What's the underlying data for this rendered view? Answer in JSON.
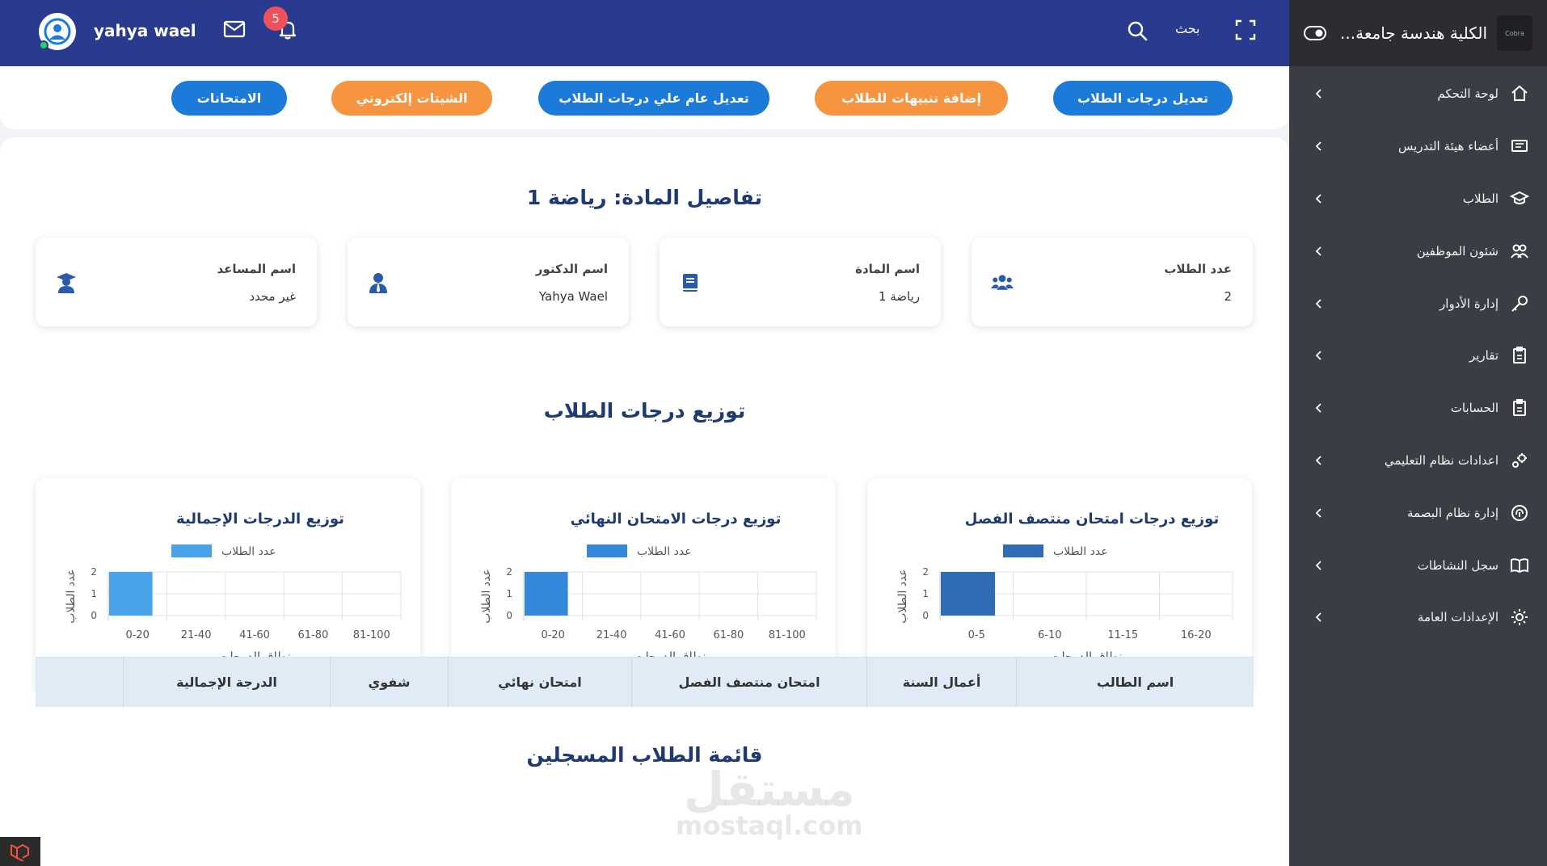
{
  "sidebar": {
    "title": "الكلية هندسة جامعة...",
    "logo_text": "Cobra",
    "items": [
      {
        "label": "لوحة التحكم",
        "icon": "home-icon"
      },
      {
        "label": "أعضاء هيئة التدريس",
        "icon": "board-icon"
      },
      {
        "label": "الطلاب",
        "icon": "graduation-cap-icon"
      },
      {
        "label": "شئون الموظفين",
        "icon": "people-icon"
      },
      {
        "label": "إدارة الأدوار",
        "icon": "key-icon"
      },
      {
        "label": "تقارير",
        "icon": "clipboard-icon"
      },
      {
        "label": "الحسابات",
        "icon": "clipboard-icon"
      },
      {
        "label": "اعدادات نظام التعليمي",
        "icon": "gears-icon"
      },
      {
        "label": "إدارة نظام البصمة",
        "icon": "fingerprint-icon"
      },
      {
        "label": "سجل النشاطات",
        "icon": "book-icon"
      },
      {
        "label": "الإعدادات العامة",
        "icon": "gear-icon"
      }
    ]
  },
  "topbar": {
    "username": "yahya wael",
    "notification_count": "5",
    "search_label": "بحث"
  },
  "actions": [
    {
      "label": "تعديل درجات الطلاب",
      "style": "blue"
    },
    {
      "label": "إضافة تنبيهات للطلاب",
      "style": "orange"
    },
    {
      "label": "تعديل عام علي درجات الطلاب",
      "style": "blue"
    },
    {
      "label": "الشيتات إلكتروني",
      "style": "orange"
    },
    {
      "label": "الامتحانات",
      "style": "blue"
    }
  ],
  "course": {
    "details_title": "تفاصيل المادة: رياضة 1",
    "cards": [
      {
        "label": "عدد الطلاب",
        "value": "2",
        "icon": "users-icon"
      },
      {
        "label": "اسم المادة",
        "value": "رياضة 1",
        "icon": "book-icon"
      },
      {
        "label": "اسم الدكتور",
        "value": "Yahya Wael",
        "icon": "user-tie-icon"
      },
      {
        "label": "اسم المساعد",
        "value": "غير محدد",
        "icon": "graduate-icon"
      }
    ]
  },
  "distribution_title": "توزيع درجات الطلاب",
  "chart_data": [
    {
      "type": "bar",
      "title": "توزيع درجات امتحان منتصف الفصل",
      "legend": "عدد الطلاب",
      "xlabel": "نطاق الدرجات",
      "ylabel": "عدد الطلاب",
      "categories": [
        "0-5",
        "6-10",
        "11-15",
        "16-20"
      ],
      "values": [
        2,
        0,
        0,
        0
      ],
      "yticks": [
        0,
        1,
        2
      ],
      "ylim": [
        0,
        2
      ],
      "color": "#2e6db3"
    },
    {
      "type": "bar",
      "title": "توزيع درجات الامتحان النهائي",
      "legend": "عدد الطلاب",
      "xlabel": "نطاق الدرجات",
      "ylabel": "عدد الطلاب",
      "categories": [
        "0-20",
        "21-40",
        "41-60",
        "61-80",
        "81-100"
      ],
      "values": [
        2,
        0,
        0,
        0,
        0
      ],
      "yticks": [
        0,
        1,
        2
      ],
      "ylim": [
        0,
        2
      ],
      "color": "#3487d9"
    },
    {
      "type": "bar",
      "title": "توزيع الدرجات الإجمالية",
      "legend": "عدد الطلاب",
      "xlabel": "نطاق الدرجات",
      "ylabel": "عدد الطلاب",
      "categories": [
        "0-20",
        "21-40",
        "41-60",
        "61-80",
        "81-100"
      ],
      "values": [
        2,
        0,
        0,
        0,
        0
      ],
      "yticks": [
        0,
        1,
        2
      ],
      "ylim": [
        0,
        2
      ],
      "color": "#4aa3e8"
    }
  ],
  "students_title": "قائمة الطلاب المسجلين",
  "table": {
    "columns": [
      "اسم الطالب",
      "أعمال السنة",
      "امتحان منتصف الفصل",
      "امتحان نهائي",
      "شفوي",
      "الدرجة الإجمالية"
    ]
  },
  "watermark": {
    "ar": "مستقل",
    "en": "mostaql.com"
  }
}
